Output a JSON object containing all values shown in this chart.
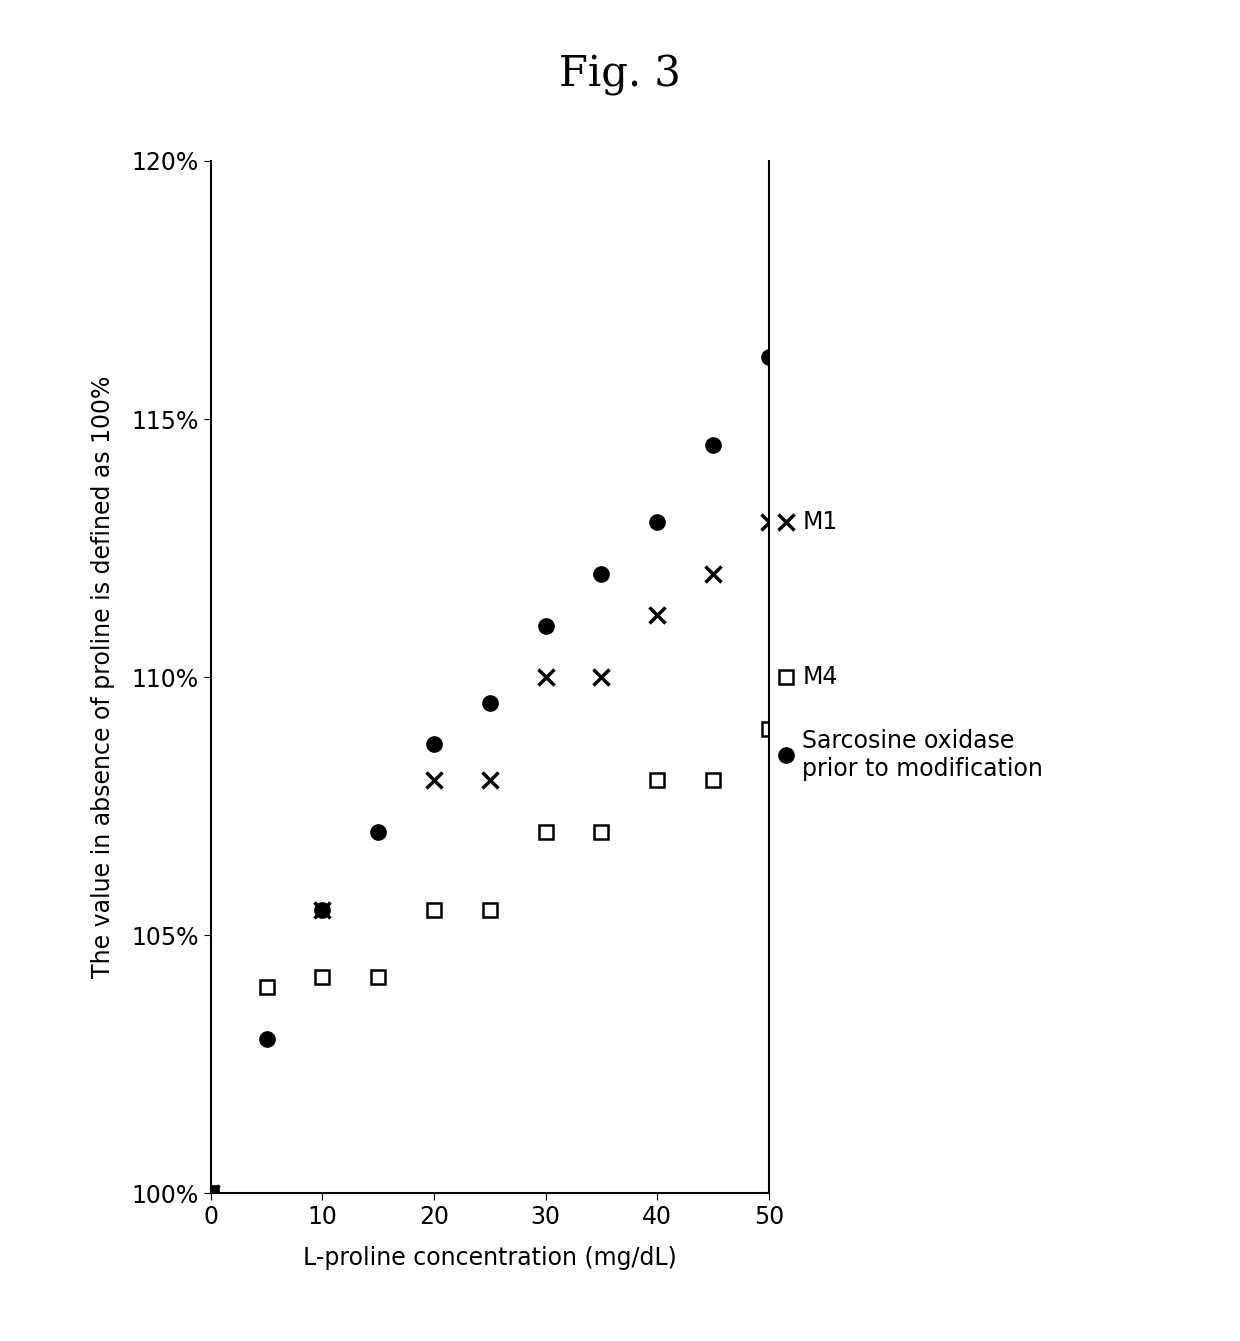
{
  "title": "Fig. 3",
  "xlabel": "L-proline concentration (mg/dL)",
  "ylabel": "The value in absence of proline is defined as 100%",
  "xlim": [
    0,
    50
  ],
  "ylim": [
    100,
    120
  ],
  "yticks": [
    100,
    105,
    110,
    115,
    120
  ],
  "xticks": [
    0,
    10,
    20,
    30,
    40,
    50
  ],
  "series": {
    "sarcosine": {
      "label": "Sarcosine oxidase\nprior to modification",
      "x": [
        0,
        5,
        10,
        15,
        20,
        25,
        30,
        35,
        40,
        45,
        50
      ],
      "y": [
        100,
        103.0,
        105.5,
        107.0,
        108.7,
        109.5,
        111.0,
        112.0,
        113.0,
        114.5,
        116.2
      ],
      "marker": "o",
      "color": "black",
      "markersize": 11,
      "fillstyle": "full"
    },
    "M1": {
      "label": "M1",
      "x": [
        0,
        10,
        20,
        25,
        30,
        35,
        40,
        45,
        50
      ],
      "y": [
        100,
        105.5,
        108.0,
        108.0,
        110.0,
        110.0,
        111.2,
        112.0,
        113.0
      ],
      "marker": "x",
      "color": "black",
      "markersize": 11,
      "fillstyle": "full"
    },
    "M4": {
      "label": "M4",
      "x": [
        0,
        5,
        10,
        15,
        20,
        25,
        30,
        35,
        40,
        45,
        50
      ],
      "y": [
        100,
        104.0,
        104.2,
        104.2,
        105.5,
        105.5,
        107.0,
        107.0,
        108.0,
        108.0,
        109.0
      ],
      "marker": "s",
      "color": "black",
      "markersize": 10,
      "fillstyle": "none"
    }
  },
  "background_color": "#ffffff",
  "title_fontsize": 30,
  "label_fontsize": 17,
  "tick_fontsize": 17,
  "legend_fontsize": 17
}
